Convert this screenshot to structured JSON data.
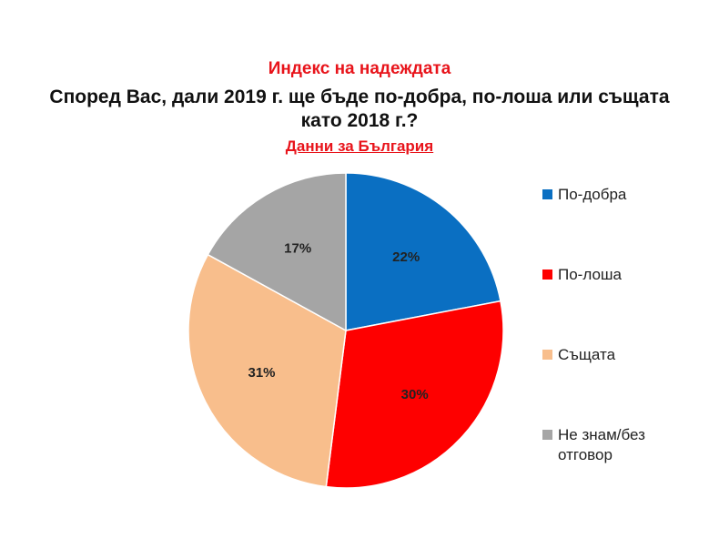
{
  "chart_data": {
    "type": "pie",
    "title": "Индекс на надеждата",
    "subtitle": "Според Вас, дали 2019 г. ще бъде по-добра, по-лоша или същата като 2018 г.?",
    "source_note": "Данни за България",
    "slices": [
      {
        "label": "По-добра",
        "value": 22,
        "display": "22%",
        "color": "#0a6fc2"
      },
      {
        "label": "По-лоша",
        "value": 30,
        "display": "30%",
        "color": "#fe0000"
      },
      {
        "label": "Същата",
        "value": 31,
        "display": "31%",
        "color": "#f8be8c"
      },
      {
        "label": "Не знам/без отговор",
        "value": 17,
        "display": "17%",
        "color": "#a5a5a5"
      }
    ],
    "legend_position": "right"
  }
}
